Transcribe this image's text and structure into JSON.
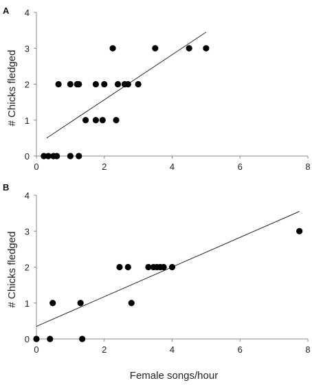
{
  "figure": {
    "xlabel": "Female songs/hour"
  },
  "chart_data": [
    {
      "type": "scatter",
      "panel_label": "A",
      "title": "",
      "xlabel": "",
      "ylabel": "# Chicks fledged",
      "xlim": [
        0,
        8
      ],
      "ylim": [
        0,
        4
      ],
      "x_ticks": [
        0,
        2,
        4,
        6,
        8
      ],
      "y_ticks": [
        0,
        1,
        2,
        3,
        4
      ],
      "grid": false,
      "points": [
        {
          "x": 0.22,
          "y": 0
        },
        {
          "x": 0.35,
          "y": 0
        },
        {
          "x": 0.5,
          "y": 0
        },
        {
          "x": 0.6,
          "y": 0
        },
        {
          "x": 1.0,
          "y": 0
        },
        {
          "x": 1.25,
          "y": 0
        },
        {
          "x": 1.45,
          "y": 1
        },
        {
          "x": 1.75,
          "y": 1
        },
        {
          "x": 1.95,
          "y": 1
        },
        {
          "x": 2.35,
          "y": 1
        },
        {
          "x": 0.65,
          "y": 2
        },
        {
          "x": 1.0,
          "y": 2
        },
        {
          "x": 1.2,
          "y": 2
        },
        {
          "x": 1.25,
          "y": 2
        },
        {
          "x": 1.75,
          "y": 2
        },
        {
          "x": 2.0,
          "y": 2
        },
        {
          "x": 2.4,
          "y": 2
        },
        {
          "x": 2.6,
          "y": 2
        },
        {
          "x": 2.7,
          "y": 2
        },
        {
          "x": 3.0,
          "y": 2
        },
        {
          "x": 2.25,
          "y": 3
        },
        {
          "x": 3.5,
          "y": 3
        },
        {
          "x": 4.5,
          "y": 3
        },
        {
          "x": 5.0,
          "y": 3
        }
      ],
      "trendline": {
        "x": [
          0.3,
          5.0
        ],
        "y": [
          0.5,
          3.45
        ]
      }
    },
    {
      "type": "scatter",
      "panel_label": "B",
      "title": "",
      "xlabel": "Female songs/hour",
      "ylabel": "# Chicks fledged",
      "xlim": [
        0,
        8
      ],
      "ylim": [
        0,
        4
      ],
      "x_ticks": [
        0,
        2,
        4,
        6,
        8
      ],
      "y_ticks": [
        0,
        1,
        2,
        3,
        4
      ],
      "grid": false,
      "points": [
        {
          "x": 0.0,
          "y": 0
        },
        {
          "x": 0.4,
          "y": 0
        },
        {
          "x": 1.35,
          "y": 0
        },
        {
          "x": 0.48,
          "y": 1
        },
        {
          "x": 1.3,
          "y": 1
        },
        {
          "x": 2.8,
          "y": 1
        },
        {
          "x": 2.45,
          "y": 2
        },
        {
          "x": 2.7,
          "y": 2
        },
        {
          "x": 3.3,
          "y": 2
        },
        {
          "x": 3.45,
          "y": 2
        },
        {
          "x": 3.55,
          "y": 2
        },
        {
          "x": 3.65,
          "y": 2
        },
        {
          "x": 3.75,
          "y": 2
        },
        {
          "x": 4.0,
          "y": 2
        },
        {
          "x": 7.75,
          "y": 3
        }
      ],
      "trendline": {
        "x": [
          0.0,
          7.75
        ],
        "y": [
          0.35,
          3.55
        ]
      }
    }
  ]
}
